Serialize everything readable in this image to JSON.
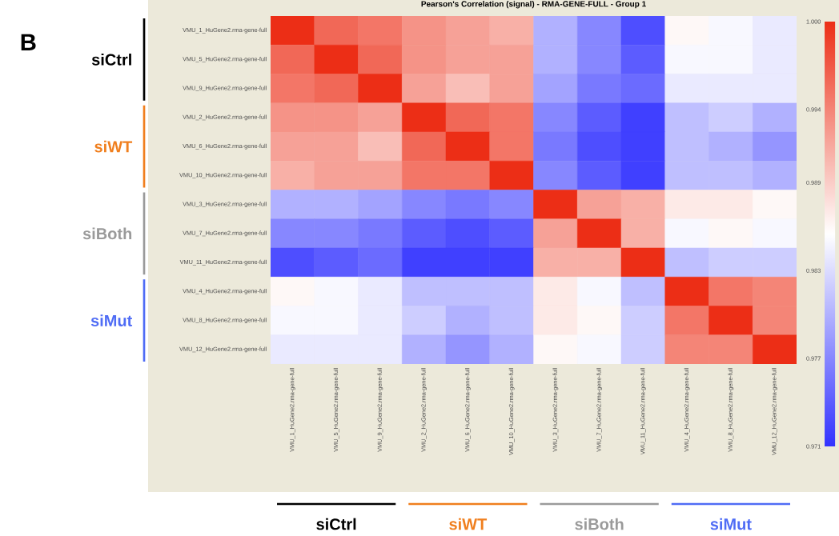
{
  "chart_data": {
    "type": "heatmap",
    "title": "Pearson's Correlation (signal) - RMA-GENE-FULL - Group 1",
    "categories": [
      "VMU_1_HuGene2.rma-gene-full",
      "VMU_5_HuGene2.rma-gene-full",
      "VMU_9_HuGene2.rma-gene-full",
      "VMU_2_HuGene2.rma-gene-full",
      "VMU_6_HuGene2.rma-gene-full",
      "VMU_10_HuGene2.rma-gene-full",
      "VMU_3_HuGene2.rma-gene-full",
      "VMU_7_HuGene2.rma-gene-full",
      "VMU_11_HuGene2.rma-gene-full",
      "VMU_4_HuGene2.rma-gene-full",
      "VMU_8_HuGene2.rma-gene-full",
      "VMU_12_HuGene2.rma-gene-full"
    ],
    "y_categories": [
      "VMU_1_HuGene2.rma-gene-full",
      "VMU_5_HuGene2.rma-gene-full",
      "VMU_9_HuGene2.rma-gene-full",
      "VMU_2_HuGene2.rma-gene-full",
      "VMU_6_HuGene2.rma-gene-full",
      "VMU_10_HuGene2.rma-gene-full",
      "VMU_3_HuGene2.rma-gene-full",
      "VMU_7_HuGene2.rma-gene-full",
      "VMU_11_HuGene2.rma-gene-full",
      "VMU_4_HuGene2.rma-gene-full",
      "VMU_8_HuGene2.rma-gene-full",
      "VMU_12_HuGene2.rma-gene-full"
    ],
    "cells": [
      [
        1.0,
        0.996,
        0.995,
        0.993,
        0.992,
        0.991,
        0.98,
        0.977,
        0.973,
        0.986,
        0.985,
        0.984
      ],
      [
        0.996,
        1.0,
        0.996,
        0.993,
        0.992,
        0.992,
        0.98,
        0.977,
        0.974,
        0.985,
        0.985,
        0.984
      ],
      [
        0.995,
        0.996,
        1.0,
        0.992,
        0.99,
        0.992,
        0.979,
        0.976,
        0.975,
        0.984,
        0.984,
        0.984
      ],
      [
        0.993,
        0.993,
        0.992,
        1.0,
        0.996,
        0.995,
        0.977,
        0.974,
        0.972,
        0.981,
        0.982,
        0.98
      ],
      [
        0.992,
        0.992,
        0.99,
        0.996,
        1.0,
        0.995,
        0.976,
        0.973,
        0.972,
        0.981,
        0.98,
        0.978
      ],
      [
        0.991,
        0.992,
        0.992,
        0.995,
        0.995,
        1.0,
        0.977,
        0.974,
        0.972,
        0.981,
        0.981,
        0.98
      ],
      [
        0.98,
        0.98,
        0.979,
        0.977,
        0.976,
        0.977,
        1.0,
        0.992,
        0.991,
        0.987,
        0.987,
        0.986
      ],
      [
        0.977,
        0.977,
        0.976,
        0.974,
        0.973,
        0.974,
        0.992,
        1.0,
        0.991,
        0.985,
        0.986,
        0.985
      ],
      [
        0.973,
        0.974,
        0.975,
        0.972,
        0.972,
        0.972,
        0.991,
        0.991,
        1.0,
        0.981,
        0.982,
        0.982
      ],
      [
        0.986,
        0.985,
        0.984,
        0.981,
        0.981,
        0.981,
        0.987,
        0.985,
        0.981,
        1.0,
        0.995,
        0.994
      ],
      [
        0.985,
        0.985,
        0.984,
        0.982,
        0.98,
        0.981,
        0.987,
        0.986,
        0.982,
        0.995,
        1.0,
        0.994
      ],
      [
        0.984,
        0.984,
        0.984,
        0.98,
        0.978,
        0.98,
        0.986,
        0.985,
        0.982,
        0.994,
        0.994,
        1.0
      ]
    ],
    "clim": [
      0.971,
      1.0
    ],
    "cticks": [
      {
        "value": 0.971,
        "label": "0.971"
      },
      {
        "value": 0.977,
        "label": "0.977"
      },
      {
        "value": 0.983,
        "label": "0.983"
      },
      {
        "value": 0.989,
        "label": "0.989"
      },
      {
        "value": 0.994,
        "label": "0.994"
      },
      {
        "value": 1.0,
        "label": "1.000"
      }
    ],
    "annotations": [
      "B",
      "siCtrl",
      "siWT",
      "siBoth",
      "siMut",
      "siCtrl",
      "siWT",
      "siBoth",
      "siMut"
    ]
  }
}
